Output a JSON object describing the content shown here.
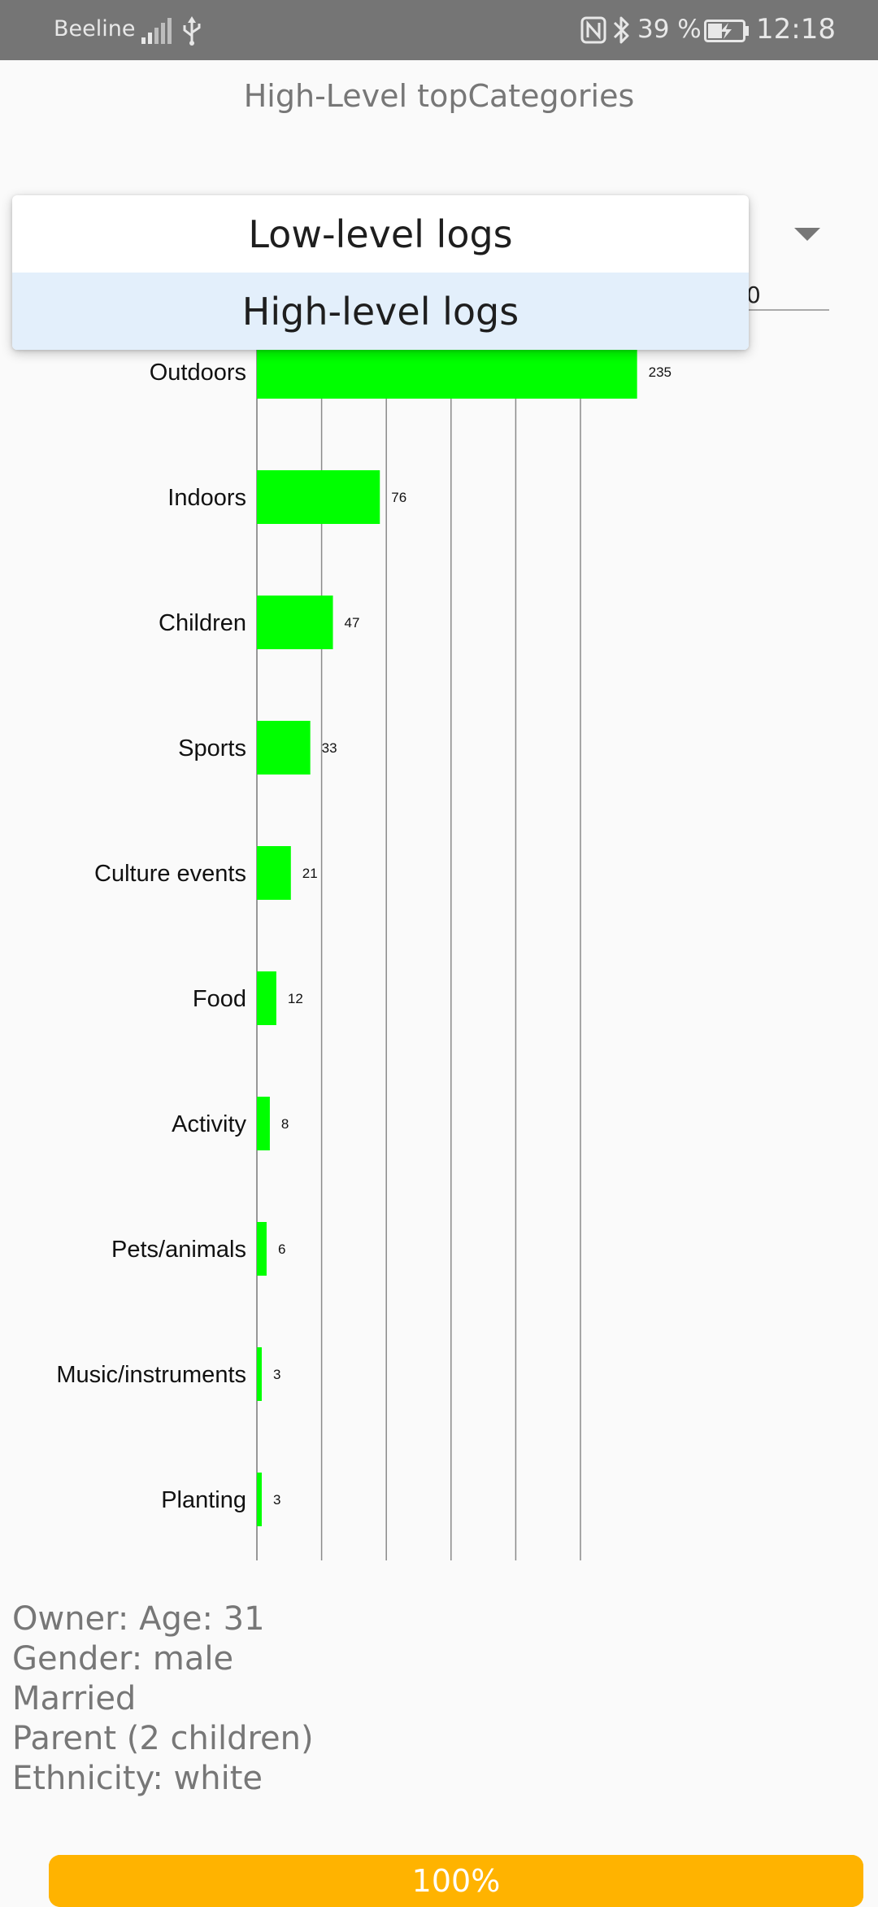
{
  "status_bar": {
    "carrier": "Beeline",
    "battery_percent": "39 %",
    "time": "12:18",
    "icons": [
      "signal-icon",
      "usb-icon",
      "nfc-icon",
      "bluetooth-icon",
      "battery-charging-icon"
    ]
  },
  "page": {
    "title": "High-Level topCategories"
  },
  "dropdown": {
    "options": [
      {
        "label": "Low-level logs"
      },
      {
        "label": "High-level logs",
        "highlighted": true
      }
    ]
  },
  "axis_top_label": "0",
  "chart_data": {
    "type": "bar",
    "orientation": "horizontal",
    "categories": [
      "Outdoors",
      "Indoors",
      "Children",
      "Sports",
      "Culture events",
      "Food",
      "Activity",
      "Pets/animals",
      "Music/instruments",
      "Planting"
    ],
    "values": [
      235,
      76,
      47,
      33,
      21,
      12,
      8,
      6,
      3,
      3
    ],
    "data_labels": [
      "235",
      "76",
      "47",
      "33",
      "21",
      "12",
      "8",
      "6",
      "3",
      "3"
    ],
    "xlim": [
      0,
      240
    ],
    "grid": true,
    "bar_color": "#00ff00"
  },
  "owner": {
    "lines": [
      "Owner: Age: 31",
      "Gender: male",
      "Married",
      "Parent (2 children)",
      "Ethnicity: white"
    ]
  },
  "progress": {
    "value": 1.0,
    "label": "100%",
    "color": "#ffc107"
  }
}
